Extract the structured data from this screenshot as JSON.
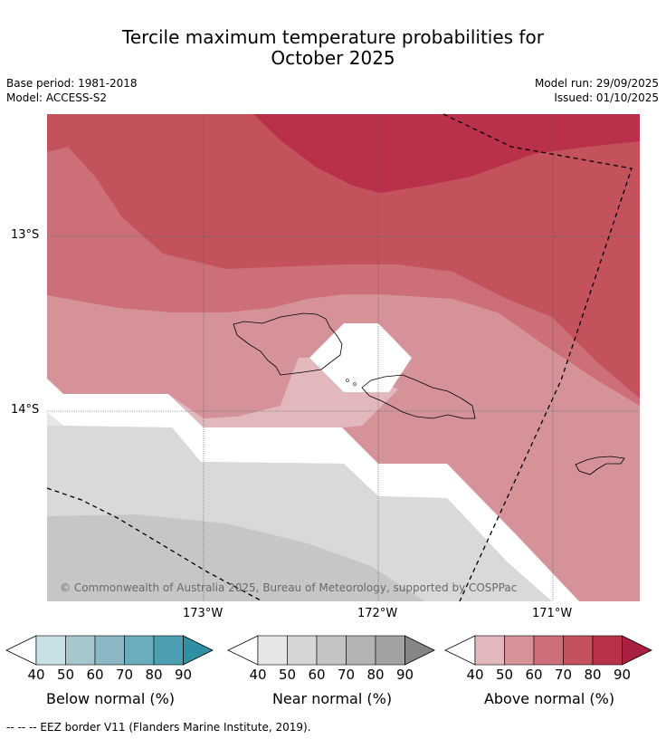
{
  "title_line1": "Tercile maximum temperature probabilities for",
  "title_line2": "October 2025",
  "meta": {
    "base_period": "Base period: 1981-2018",
    "model": "Model: ACCESS-S2",
    "model_run": "Model run: 29/09/2025",
    "issued": "Issued: 01/10/2025"
  },
  "map": {
    "lat_labels": [
      "13°S",
      "14°S"
    ],
    "lon_labels": [
      "173°W",
      "172°W",
      "171°W"
    ],
    "copyright": "© Commonwealth of Australia 2025, Bureau of Meteorology, supported by COSPPac"
  },
  "colorbars": [
    {
      "label": "Below normal (%)",
      "ticks": [
        "40",
        "50",
        "60",
        "70",
        "80",
        "90"
      ],
      "colors": [
        "#c8e0e6",
        "#a6c7cd",
        "#8ab7c3",
        "#6aadbd",
        "#4b9fb1",
        "#2f8fa4"
      ]
    },
    {
      "label": "Near normal (%)",
      "ticks": [
        "40",
        "50",
        "60",
        "70",
        "80",
        "90"
      ],
      "colors": [
        "#e6e6e6",
        "#d6d6d6",
        "#c4c4c4",
        "#b4b4b4",
        "#a2a2a2",
        "#868686"
      ]
    },
    {
      "label": "Above normal (%)",
      "ticks": [
        "40",
        "50",
        "60",
        "70",
        "80",
        "90"
      ],
      "colors": [
        "#e2b8bc",
        "#d59399",
        "#cd6f78",
        "#c4525c",
        "#b9304a",
        "#a91f40"
      ]
    }
  ],
  "footer": "--  --  -- EEZ border V11 (Flanders Marine Institute, 2019)."
}
